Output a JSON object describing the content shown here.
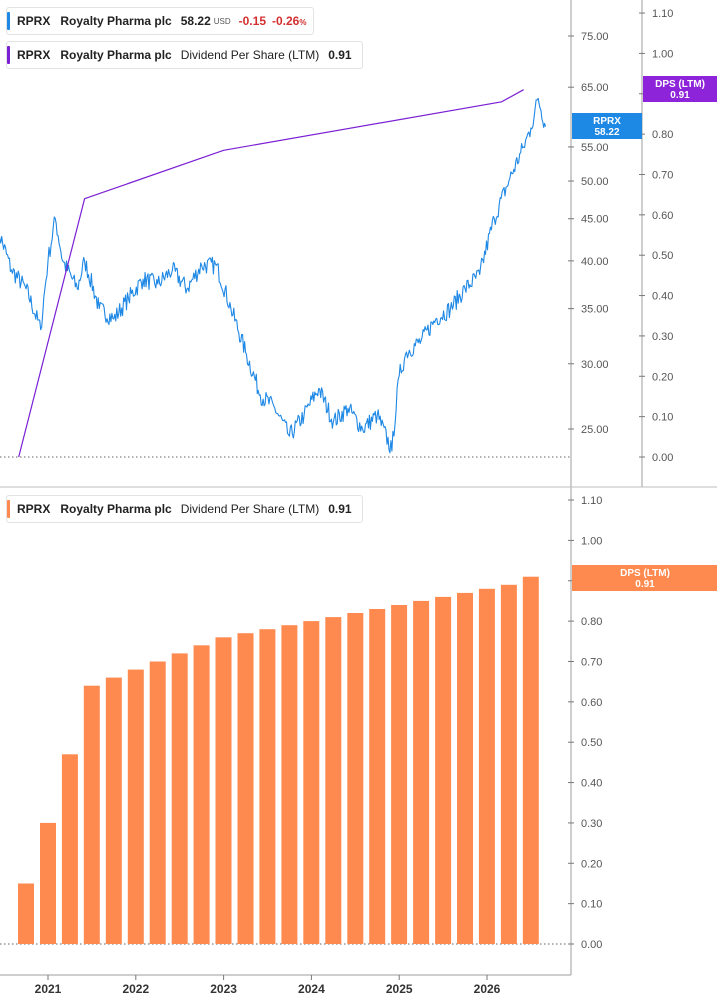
{
  "legends": {
    "price": {
      "ticker": "RPRX",
      "name": "Royalty Pharma plc",
      "value": "58.22",
      "currency": "USD",
      "change": "-0.15",
      "change_pct": "-0.26",
      "pct_sign": "%",
      "color": "#1e88e5"
    },
    "dps_top": {
      "ticker": "RPRX",
      "name": "Royalty Pharma plc",
      "metric": "Dividend Per Share (LTM)",
      "value": "0.91",
      "color": "#7b1fd4"
    },
    "dps_bottom": {
      "ticker": "RPRX",
      "name": "Royalty Pharma plc",
      "metric": "Dividend Per Share (LTM)",
      "value": "0.91",
      "color": "#ff8a50"
    }
  },
  "tags": {
    "price": {
      "line1": "RPRX",
      "line2": "58.22",
      "color": "#1e88e5"
    },
    "dps_top": {
      "line1": "DPS (LTM)",
      "line2": "0.91",
      "color": "#8e24d9"
    },
    "dps_bottom": {
      "line1": "DPS (LTM)",
      "line2": "0.91",
      "color": "#ff8a50"
    }
  },
  "chart_data": [
    {
      "type": "line",
      "title": "",
      "y_scale": "log",
      "price_axis_ticks": [
        "75.00",
        "65.00",
        "55.00",
        "50.00",
        "45.00",
        "40.00",
        "35.00",
        "30.00",
        "25.00"
      ],
      "dps_axis_ticks": [
        "1.10",
        "1.00",
        "0.90",
        "0.80",
        "0.70",
        "0.60",
        "0.50",
        "0.40",
        "0.30",
        "0.20",
        "0.10",
        "0.00"
      ],
      "series": [
        {
          "name": "RPRX",
          "axis": "price",
          "color": "#1e88e5",
          "x": [
            "2020-06",
            "2020-08",
            "2020-10",
            "2020-12",
            "2021-01",
            "2021-02",
            "2021-03",
            "2021-05",
            "2021-06",
            "2021-08",
            "2021-10",
            "2021-12",
            "2022-02",
            "2022-04",
            "2022-06",
            "2022-08",
            "2022-10",
            "2022-12",
            "2023-02",
            "2023-04",
            "2023-06",
            "2023-08",
            "2023-10",
            "2023-12",
            "2024-02",
            "2024-04",
            "2024-06",
            "2024-08",
            "2024-10",
            "2024-12",
            "2025-01",
            "2025-02",
            "2025-04",
            "2025-06",
            "2025-08",
            "2025-10",
            "2025-12",
            "2026-02",
            "2026-04",
            "2026-06",
            "2026-07",
            "2026-08",
            "2026-09"
          ],
          "y": [
            44.0,
            39.0,
            37.0,
            33.0,
            40.0,
            45.0,
            40.0,
            37.0,
            40.0,
            35.0,
            34.0,
            36.0,
            38.0,
            37.5,
            39.0,
            37.0,
            39.5,
            39.5,
            35.0,
            31.0,
            27.5,
            26.5,
            24.5,
            26.0,
            28.0,
            25.5,
            26.5,
            25.0,
            26.0,
            23.5,
            29.0,
            31.0,
            32.0,
            34.0,
            35.0,
            37.0,
            38.5,
            45.0,
            50.0,
            55.0,
            58.0,
            63.0,
            58.22
          ]
        },
        {
          "name": "Dividend Per Share (LTM)",
          "axis": "dps",
          "color": "#7b1fd4",
          "x": [
            "2020-09",
            "2021-06",
            "2023-01",
            "2026-03",
            "2026-06"
          ],
          "y": [
            0.0,
            0.64,
            0.76,
            0.88,
            0.91
          ]
        }
      ]
    },
    {
      "type": "bar",
      "title": "",
      "y_ticks": [
        "1.10",
        "1.00",
        "0.90",
        "0.80",
        "0.70",
        "0.60",
        "0.50",
        "0.40",
        "0.30",
        "0.20",
        "0.10",
        "0.00"
      ],
      "ylim": [
        0,
        1.1
      ],
      "x_labels": [
        "2021",
        "2022",
        "2023",
        "2024",
        "2025",
        "2026"
      ],
      "series": [
        {
          "name": "Dividend Per Share (LTM)",
          "color": "#ff8a50",
          "x": [
            "2020-Q4",
            "2021-Q1",
            "2021-Q2",
            "2021-Q3",
            "2021-Q4",
            "2022-Q1",
            "2022-Q2",
            "2022-Q3",
            "2022-Q4",
            "2023-Q1",
            "2023-Q2",
            "2023-Q3",
            "2023-Q4",
            "2024-Q1",
            "2024-Q2",
            "2024-Q3",
            "2024-Q4",
            "2025-Q1",
            "2025-Q2",
            "2025-Q3",
            "2025-Q4",
            "2026-Q1",
            "2026-Q2",
            "2026-Q3"
          ],
          "values": [
            0.15,
            0.3,
            0.47,
            0.64,
            0.66,
            0.68,
            0.7,
            0.72,
            0.74,
            0.76,
            0.77,
            0.78,
            0.79,
            0.8,
            0.81,
            0.82,
            0.83,
            0.84,
            0.85,
            0.86,
            0.87,
            0.88,
            0.89,
            0.91
          ]
        }
      ]
    }
  ]
}
